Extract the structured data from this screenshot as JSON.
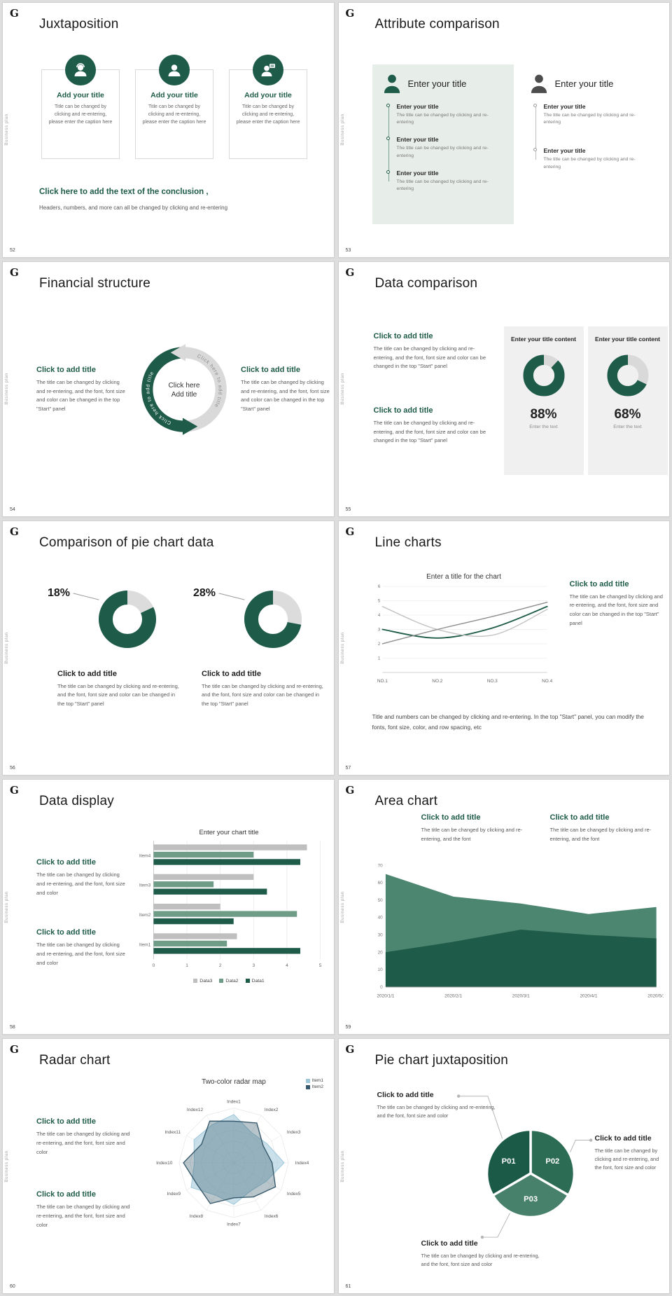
{
  "meta": {
    "accent_color": "#1e5b49",
    "background_color": "#dedede"
  },
  "common": {
    "logo": "G",
    "sidebar_label": "Business plan"
  },
  "icons": {
    "brand_logo": "letter-G",
    "card_icons": [
      "operator-person",
      "person",
      "chat-person"
    ],
    "panel_icons": [
      "person-green",
      "person-gray"
    ],
    "timeline_node": "hollow-circle"
  },
  "slides": [
    {
      "number": "52",
      "title": "Juxtaposition",
      "cards": [
        {
          "title": "Add your title",
          "caption": "Title can be changed by clicking and re-entering, please enter the caption here"
        },
        {
          "title": "Add your title",
          "caption": "Title can be changed by clicking and re-entering, please enter the caption here"
        },
        {
          "title": "Add your title",
          "caption": "Title can be changed by clicking and re-entering, please enter the caption here"
        }
      ],
      "conclusion_title": "Click here to add the text of the conclusion ,",
      "conclusion_body": "Headers, numbers, and more can all be changed by clicking and re-entering"
    },
    {
      "number": "53",
      "title": "Attribute comparison",
      "left": {
        "header": "Enter your title",
        "items": [
          {
            "title": "Enter your title",
            "body": "The title can be changed by clicking and re-entering"
          },
          {
            "title": "Enter your title",
            "body": "The title can be changed by clicking and re-entering"
          },
          {
            "title": "Enter your title",
            "body": "The title can be changed by clicking and re-entering"
          }
        ]
      },
      "right": {
        "header": "Enter your title",
        "items": [
          {
            "title": "Enter your title",
            "body": "The title can be changed by clicking and re-entering"
          },
          {
            "title": "Enter your title",
            "body": "The title can be changed by clicking and re-entering"
          }
        ]
      }
    },
    {
      "number": "54",
      "title": "Financial structure",
      "left": {
        "title": "Click to add title",
        "body": "The title can be changed by clicking and re-entering, and the font, font size and color can be changed in the top \"Start\" panel"
      },
      "right": {
        "title": "Click to add title",
        "body": "The title can be changed by clicking and re-entering, and the font, font size and color can be changed in the top \"Start\" panel"
      },
      "center": {
        "line1": "Click here",
        "line2": "Add title",
        "arc_text": "Click here to add title"
      }
    },
    {
      "number": "55",
      "title": "Data comparison",
      "blocks": [
        {
          "title": "Click to add title",
          "body": "The title can be changed by clicking and re-entering, and the font, font size and color can be changed in the top \"Start\" panel"
        },
        {
          "title": "Click to add title",
          "body": "The title can be changed by clicking and re-entering, and the font, font size and color can be changed in the top \"Start\" panel"
        }
      ],
      "cards": [
        {
          "header": "Enter your title content",
          "caption": "Enter the text"
        },
        {
          "header": "Enter your title content",
          "caption": "Enter the text"
        }
      ]
    },
    {
      "number": "56",
      "title": "Comparison of pie chart data",
      "groups": [
        {
          "title": "Click to add title",
          "body": "The title can be changed by clicking and re-entering, and the font, font size and color can be changed in the top \"Start\" panel"
        },
        {
          "title": "Click to add title",
          "body": "The title can be changed by clicking and re-entering, and the font, font size and color can be changed in the top \"Start\" panel"
        }
      ]
    },
    {
      "number": "57",
      "title": "Line charts",
      "side": {
        "title": "Click to add title",
        "body": "The title can be changed by clicking and re-entering, and the font, font size and color can be changed in the top \"Start\" panel"
      },
      "footer": "Title and numbers can be changed by clicking and re-entering. In the top \"Start\" panel, you can modify the fonts, font size, color, and row spacing, etc"
    },
    {
      "number": "58",
      "title": "Data display",
      "blocks": [
        {
          "title": "Click to add title",
          "body": "The title can be changed by clicking and re-entering, and the font, font size and color"
        },
        {
          "title": "Click to add title",
          "body": "The title can be changed by clicking and re-entering, and the font, font size and color"
        }
      ]
    },
    {
      "number": "59",
      "title": "Area chart",
      "blocks": [
        {
          "title": "Click to add title",
          "body": "The title can be changed by clicking and re-entering, and the font"
        },
        {
          "title": "Click to add title",
          "body": "The title can be changed by clicking and re-entering, and the font"
        }
      ]
    },
    {
      "number": "60",
      "title": "Radar chart",
      "blocks": [
        {
          "title": "Click to add title",
          "body": "The title can be changed by clicking and re-entering, and the font, font size and color"
        },
        {
          "title": "Click to add title",
          "body": "The title can be changed by clicking and re-entering, and the font, font size and color"
        }
      ]
    },
    {
      "number": "61",
      "title": "Pie chart juxtaposition",
      "callouts": [
        {
          "title": "Click to add title",
          "body": "The title can be changed by clicking and re-entering, and the font, font size and color"
        },
        {
          "title": "Click to add title",
          "body": "The title can be changed by clicking and re-entering, and the font, font size and color"
        },
        {
          "title": "Click to add title",
          "body": "The title can be changed by clicking and re-entering, and the font, font size and color"
        }
      ]
    }
  ],
  "chart_data": [
    {
      "id": "donut-88",
      "type": "donut",
      "label": "88%",
      "green_percent": 88,
      "color": "#1e5b49",
      "track": "#d9d9d9"
    },
    {
      "id": "donut-68",
      "type": "donut",
      "label": "68%",
      "green_percent": 68,
      "color": "#1e5b49",
      "track": "#d9d9d9"
    },
    {
      "id": "donut-18",
      "type": "donut",
      "label": "18%",
      "green_percent": 82,
      "gray_percent": 18,
      "color": "#1e5b49",
      "track": "#dcdcdc"
    },
    {
      "id": "donut-28",
      "type": "donut",
      "label": "28%",
      "green_percent": 72,
      "gray_percent": 28,
      "color": "#1e5b49",
      "track": "#dcdcdc"
    },
    {
      "id": "line-57",
      "type": "line",
      "title": "Enter a title for the chart",
      "x": [
        "NO.1",
        "NO.2",
        "NO.3",
        "NO.4"
      ],
      "ylim": [
        0,
        6
      ],
      "yticks": [
        1,
        2,
        3,
        4,
        5,
        6
      ],
      "series": [
        {
          "name": "series-1",
          "color": "#1e5b49",
          "values": [
            3.0,
            2.4,
            3.1,
            4.6
          ]
        },
        {
          "name": "series-2",
          "color": "#c3c3c3",
          "values": [
            4.6,
            3.0,
            2.6,
            4.4
          ]
        },
        {
          "name": "series-3",
          "color": "#8f8f8f",
          "values": [
            2.0,
            3.0,
            3.9,
            4.9
          ]
        }
      ]
    },
    {
      "id": "bar-58",
      "type": "bar",
      "title": "Enter your chart title",
      "orientation": "horizontal",
      "categories": [
        "Item1",
        "Item2",
        "Item3",
        "Item4"
      ],
      "xlim": [
        0,
        5
      ],
      "xticks": [
        0,
        1,
        2,
        3,
        4,
        5
      ],
      "series": [
        {
          "name": "Data3",
          "color": "#bfbfbf",
          "values": [
            2.5,
            2.0,
            3.0,
            4.6
          ]
        },
        {
          "name": "Data2",
          "color": "#6f9c87",
          "values": [
            2.2,
            4.3,
            1.8,
            3.0
          ]
        },
        {
          "name": "Data1",
          "color": "#1e5b49",
          "values": [
            4.4,
            2.4,
            3.4,
            4.4
          ]
        }
      ]
    },
    {
      "id": "area-59",
      "type": "area",
      "x": [
        "2020/1/1",
        "2020/2/1",
        "2020/3/1",
        "2020/4/1",
        "2020/5/1"
      ],
      "ylim": [
        0,
        70
      ],
      "yticks": [
        0,
        10,
        20,
        30,
        40,
        50,
        60,
        70
      ],
      "series": [
        {
          "name": "series-back",
          "color": "#4c8670",
          "values": [
            65,
            52,
            48,
            42,
            46
          ]
        },
        {
          "name": "series-front",
          "color": "#1e5b49",
          "values": [
            20,
            26,
            33,
            30,
            28
          ]
        }
      ]
    },
    {
      "id": "radar-60",
      "type": "radar",
      "title": "Two-color radar map",
      "max": 5,
      "axes": [
        "Index1",
        "Index2",
        "Index3",
        "Index4",
        "Index5",
        "Index6",
        "Index7",
        "Index8",
        "Index9",
        "Index10",
        "Index11",
        "Index12"
      ],
      "series": [
        {
          "name": "Item1",
          "color": "#9ec8da",
          "values": [
            4.4,
            3.2,
            3.5,
            4.6,
            3.4,
            3.0,
            3.8,
            3.4,
            4.5,
            3.6,
            4.2,
            4.0
          ]
        },
        {
          "name": "Item2",
          "color": "#35586b",
          "values": [
            3.8,
            4.2,
            3.1,
            3.5,
            4.4,
            3.6,
            3.2,
            4.3,
            3.9,
            4.6,
            3.4,
            4.4
          ]
        }
      ]
    },
    {
      "id": "pie-61",
      "type": "pie",
      "start_angle": -90,
      "slices": [
        {
          "label": "P02",
          "value": 33.3,
          "color": "#2c6b54"
        },
        {
          "label": "P03",
          "value": 33.3,
          "color": "#47806b"
        },
        {
          "label": "P01",
          "value": 33.4,
          "color": "#1b5a47"
        }
      ]
    }
  ]
}
